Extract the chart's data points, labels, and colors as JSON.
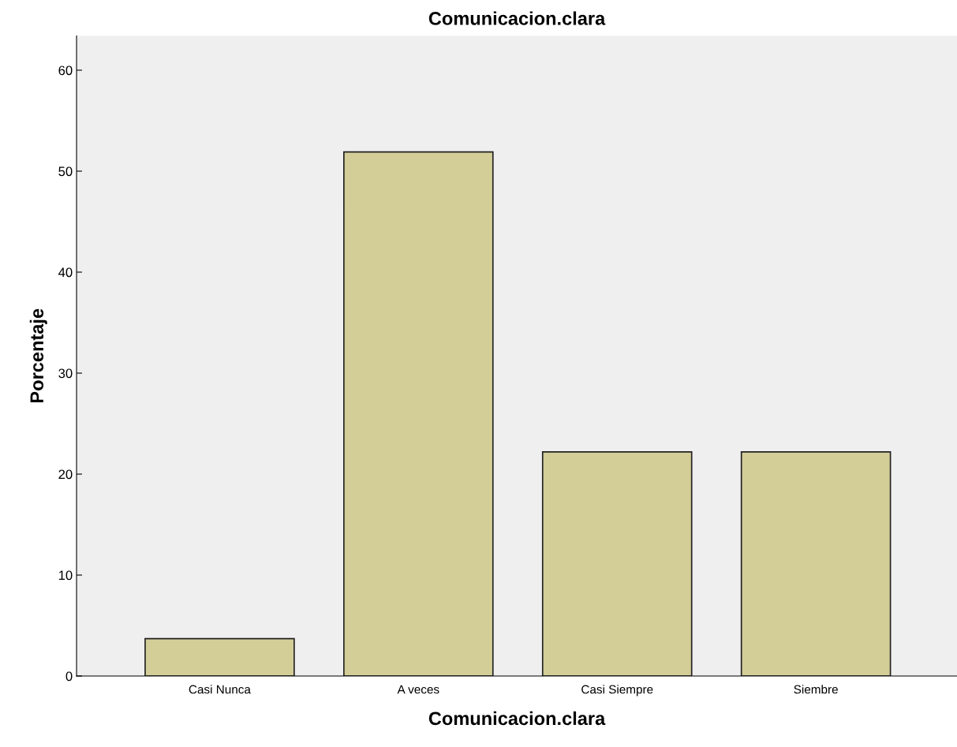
{
  "chart_data": {
    "type": "bar",
    "title": "Comunicacion.clara",
    "xlabel": "Comunicacion.clara",
    "ylabel": "Porcentaje",
    "categories": [
      "Casi Nunca",
      "A veces",
      "Casi Siempre",
      "Siembre"
    ],
    "values": [
      3.7,
      51.9,
      22.2,
      22.2
    ],
    "color": "#d3cd98",
    "ylim": [
      0,
      63.4
    ],
    "yticks": [
      0,
      10,
      20,
      30,
      40,
      50,
      60
    ],
    "grid": false
  }
}
